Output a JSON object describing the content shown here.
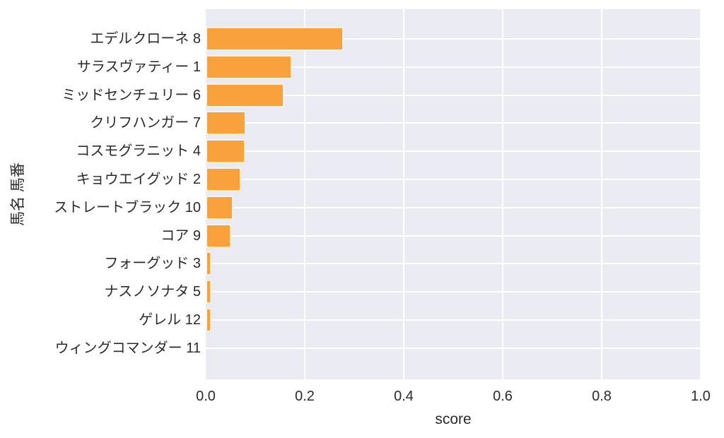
{
  "figure": {
    "background_color": "#ffffff",
    "plot_background_color": "#eaeaf2",
    "grid_color": "#ffffff",
    "bar_color": "#f9a13c",
    "bar_edge_color": "#fdf0dc",
    "text_color": "#2b2b2b"
  },
  "chart_data": {
    "type": "bar",
    "orientation": "horizontal",
    "title": "",
    "xlabel": "score",
    "ylabel": "馬名 馬番",
    "xlim": [
      0.0,
      1.0
    ],
    "xticks": [
      0.0,
      0.2,
      0.4,
      0.6,
      0.8,
      1.0
    ],
    "xtick_labels": [
      "0.0",
      "0.2",
      "0.4",
      "0.6",
      "0.8",
      "1.0"
    ],
    "grid": true,
    "legend_position": "none",
    "categories": [
      "エデルクローネ 8",
      "サラスヴァティー 1",
      "ミッドセンチュリー 6",
      "クリフハンガー 7",
      "コスモグラニット 4",
      "キョウエイグッド 2",
      "ストレートブラック 10",
      "コア 9",
      "フォーグッド 3",
      "ナスノソナタ 5",
      "ゲレル 12",
      "ウィングコマンダー 11"
    ],
    "values": [
      0.279,
      0.174,
      0.158,
      0.082,
      0.08,
      0.072,
      0.056,
      0.051,
      0.012,
      0.011,
      0.011,
      0.0
    ]
  }
}
